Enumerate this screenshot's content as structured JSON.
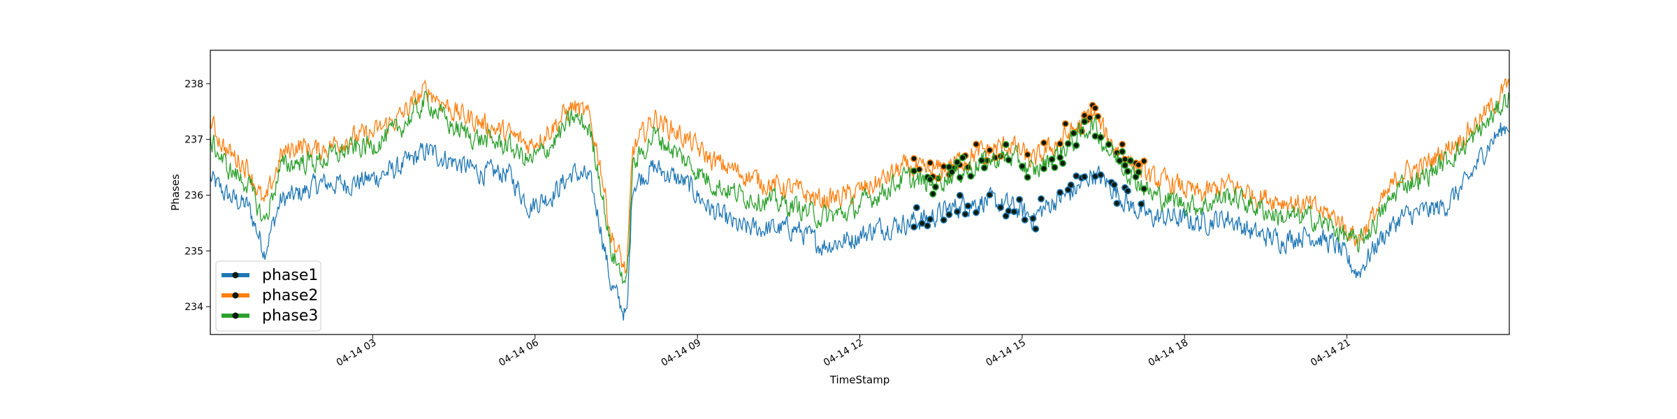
{
  "chart_data": {
    "type": "line",
    "title": "",
    "xlabel": "TimeStamp",
    "ylabel": "Phases",
    "x_range": [
      "2023-04-14 00:00",
      "2023-04-14 24:00"
    ],
    "x_ticks": [
      {
        "hour": 3,
        "label": "04-14 03"
      },
      {
        "hour": 6,
        "label": "04-14 06"
      },
      {
        "hour": 9,
        "label": "04-14 09"
      },
      {
        "hour": 12,
        "label": "04-14 12"
      },
      {
        "hour": 15,
        "label": "04-14 15"
      },
      {
        "hour": 18,
        "label": "04-14 18"
      },
      {
        "hour": 21,
        "label": "04-14 21"
      }
    ],
    "ylim": [
      233.5,
      238.6
    ],
    "y_ticks": [
      234,
      235,
      236,
      237,
      238
    ],
    "grid": false,
    "legend_position": "lower-left",
    "series": [
      {
        "name": "phase1",
        "color": "#1f77b4",
        "hours": [
          0,
          0.3,
          0.7,
          1.0,
          1.3,
          1.6,
          2.0,
          2.5,
          3.0,
          3.5,
          4.0,
          4.5,
          5.0,
          5.5,
          5.9,
          6.3,
          6.7,
          7.0,
          7.2,
          7.4,
          7.6,
          7.7,
          7.8,
          8.2,
          8.8,
          9.3,
          9.8,
          10.3,
          10.8,
          11.3,
          11.8,
          12.3,
          12.8,
          13.3,
          13.8,
          14.3,
          14.8,
          15.2,
          15.6,
          16.0,
          16.3,
          16.6,
          17.0,
          17.4,
          17.8,
          18.3,
          18.8,
          19.3,
          19.8,
          20.3,
          20.8,
          21.2,
          21.6,
          22.0,
          22.4,
          22.8,
          23.2,
          23.6,
          24.0
        ],
        "values": [
          236.3,
          236.0,
          235.8,
          235.0,
          235.9,
          236.0,
          236.2,
          236.2,
          236.3,
          236.5,
          236.8,
          236.6,
          236.4,
          236.4,
          235.8,
          236.0,
          236.4,
          236.3,
          235.5,
          234.4,
          234.0,
          233.8,
          236.2,
          236.5,
          236.2,
          235.7,
          235.4,
          235.4,
          235.4,
          235.1,
          235.2,
          235.4,
          235.5,
          235.6,
          235.8,
          235.9,
          235.8,
          235.6,
          235.9,
          236.1,
          236.4,
          236.2,
          235.8,
          235.6,
          235.6,
          235.5,
          235.6,
          235.3,
          235.2,
          235.3,
          235.1,
          234.6,
          235.2,
          235.6,
          235.7,
          235.8,
          236.2,
          236.9,
          237.3
        ]
      },
      {
        "name": "phase2",
        "color": "#ff7f0e",
        "hours": [
          0,
          0.3,
          0.7,
          1.0,
          1.3,
          1.6,
          2.0,
          2.5,
          3.0,
          3.5,
          4.0,
          4.5,
          5.0,
          5.5,
          5.9,
          6.3,
          6.7,
          7.0,
          7.2,
          7.4,
          7.6,
          7.7,
          7.8,
          8.2,
          8.8,
          9.3,
          9.8,
          10.3,
          10.8,
          11.3,
          11.8,
          12.3,
          12.8,
          13.3,
          13.8,
          14.3,
          14.8,
          15.2,
          15.6,
          16.0,
          16.3,
          16.6,
          17.0,
          17.4,
          17.8,
          18.3,
          18.8,
          19.3,
          19.8,
          20.3,
          20.8,
          21.2,
          21.6,
          22.0,
          22.4,
          22.8,
          23.2,
          23.6,
          24.0
        ],
        "values": [
          237.3,
          236.8,
          236.5,
          235.8,
          236.7,
          236.9,
          236.8,
          237.0,
          237.1,
          237.4,
          237.9,
          237.5,
          237.3,
          237.1,
          236.9,
          237.2,
          237.6,
          237.4,
          236.6,
          235.3,
          234.8,
          234.6,
          236.8,
          237.4,
          237.0,
          236.6,
          236.4,
          236.2,
          236.1,
          235.9,
          236.0,
          236.2,
          236.5,
          236.4,
          236.6,
          236.8,
          236.9,
          236.6,
          236.9,
          237.2,
          237.5,
          237.0,
          236.6,
          236.3,
          236.2,
          236.0,
          236.2,
          236.0,
          235.9,
          235.8,
          235.6,
          235.2,
          235.8,
          236.4,
          236.5,
          236.8,
          237.1,
          237.5,
          238.0
        ]
      },
      {
        "name": "phase3",
        "color": "#2ca02c",
        "hours": [
          0,
          0.3,
          0.7,
          1.0,
          1.3,
          1.6,
          2.0,
          2.5,
          3.0,
          3.5,
          4.0,
          4.5,
          5.0,
          5.5,
          5.9,
          6.3,
          6.7,
          7.0,
          7.2,
          7.4,
          7.6,
          7.7,
          7.8,
          8.2,
          8.8,
          9.3,
          9.8,
          10.3,
          10.8,
          11.3,
          11.8,
          12.3,
          12.8,
          13.3,
          13.8,
          14.3,
          14.8,
          15.2,
          15.6,
          16.0,
          16.3,
          16.6,
          17.0,
          17.4,
          17.8,
          18.3,
          18.8,
          19.3,
          19.8,
          20.3,
          20.8,
          21.2,
          21.6,
          22.0,
          22.4,
          22.8,
          23.2,
          23.6,
          24.0
        ],
        "values": [
          237.0,
          236.5,
          236.2,
          235.5,
          236.5,
          236.6,
          236.6,
          236.8,
          236.9,
          237.2,
          237.7,
          237.2,
          237.0,
          236.9,
          236.6,
          236.9,
          237.4,
          237.2,
          236.3,
          235.0,
          234.6,
          234.4,
          236.5,
          237.1,
          236.6,
          236.2,
          236.0,
          235.9,
          235.8,
          235.6,
          235.7,
          236.0,
          236.3,
          236.2,
          236.4,
          236.6,
          236.7,
          236.4,
          236.7,
          237.0,
          237.3,
          236.8,
          236.4,
          236.0,
          235.9,
          235.8,
          236.0,
          235.8,
          235.6,
          235.6,
          235.4,
          235.1,
          235.6,
          236.2,
          236.3,
          236.6,
          236.9,
          237.3,
          237.8
        ]
      }
    ],
    "highlighted_range_hours": [
      13.0,
      17.3
    ]
  }
}
